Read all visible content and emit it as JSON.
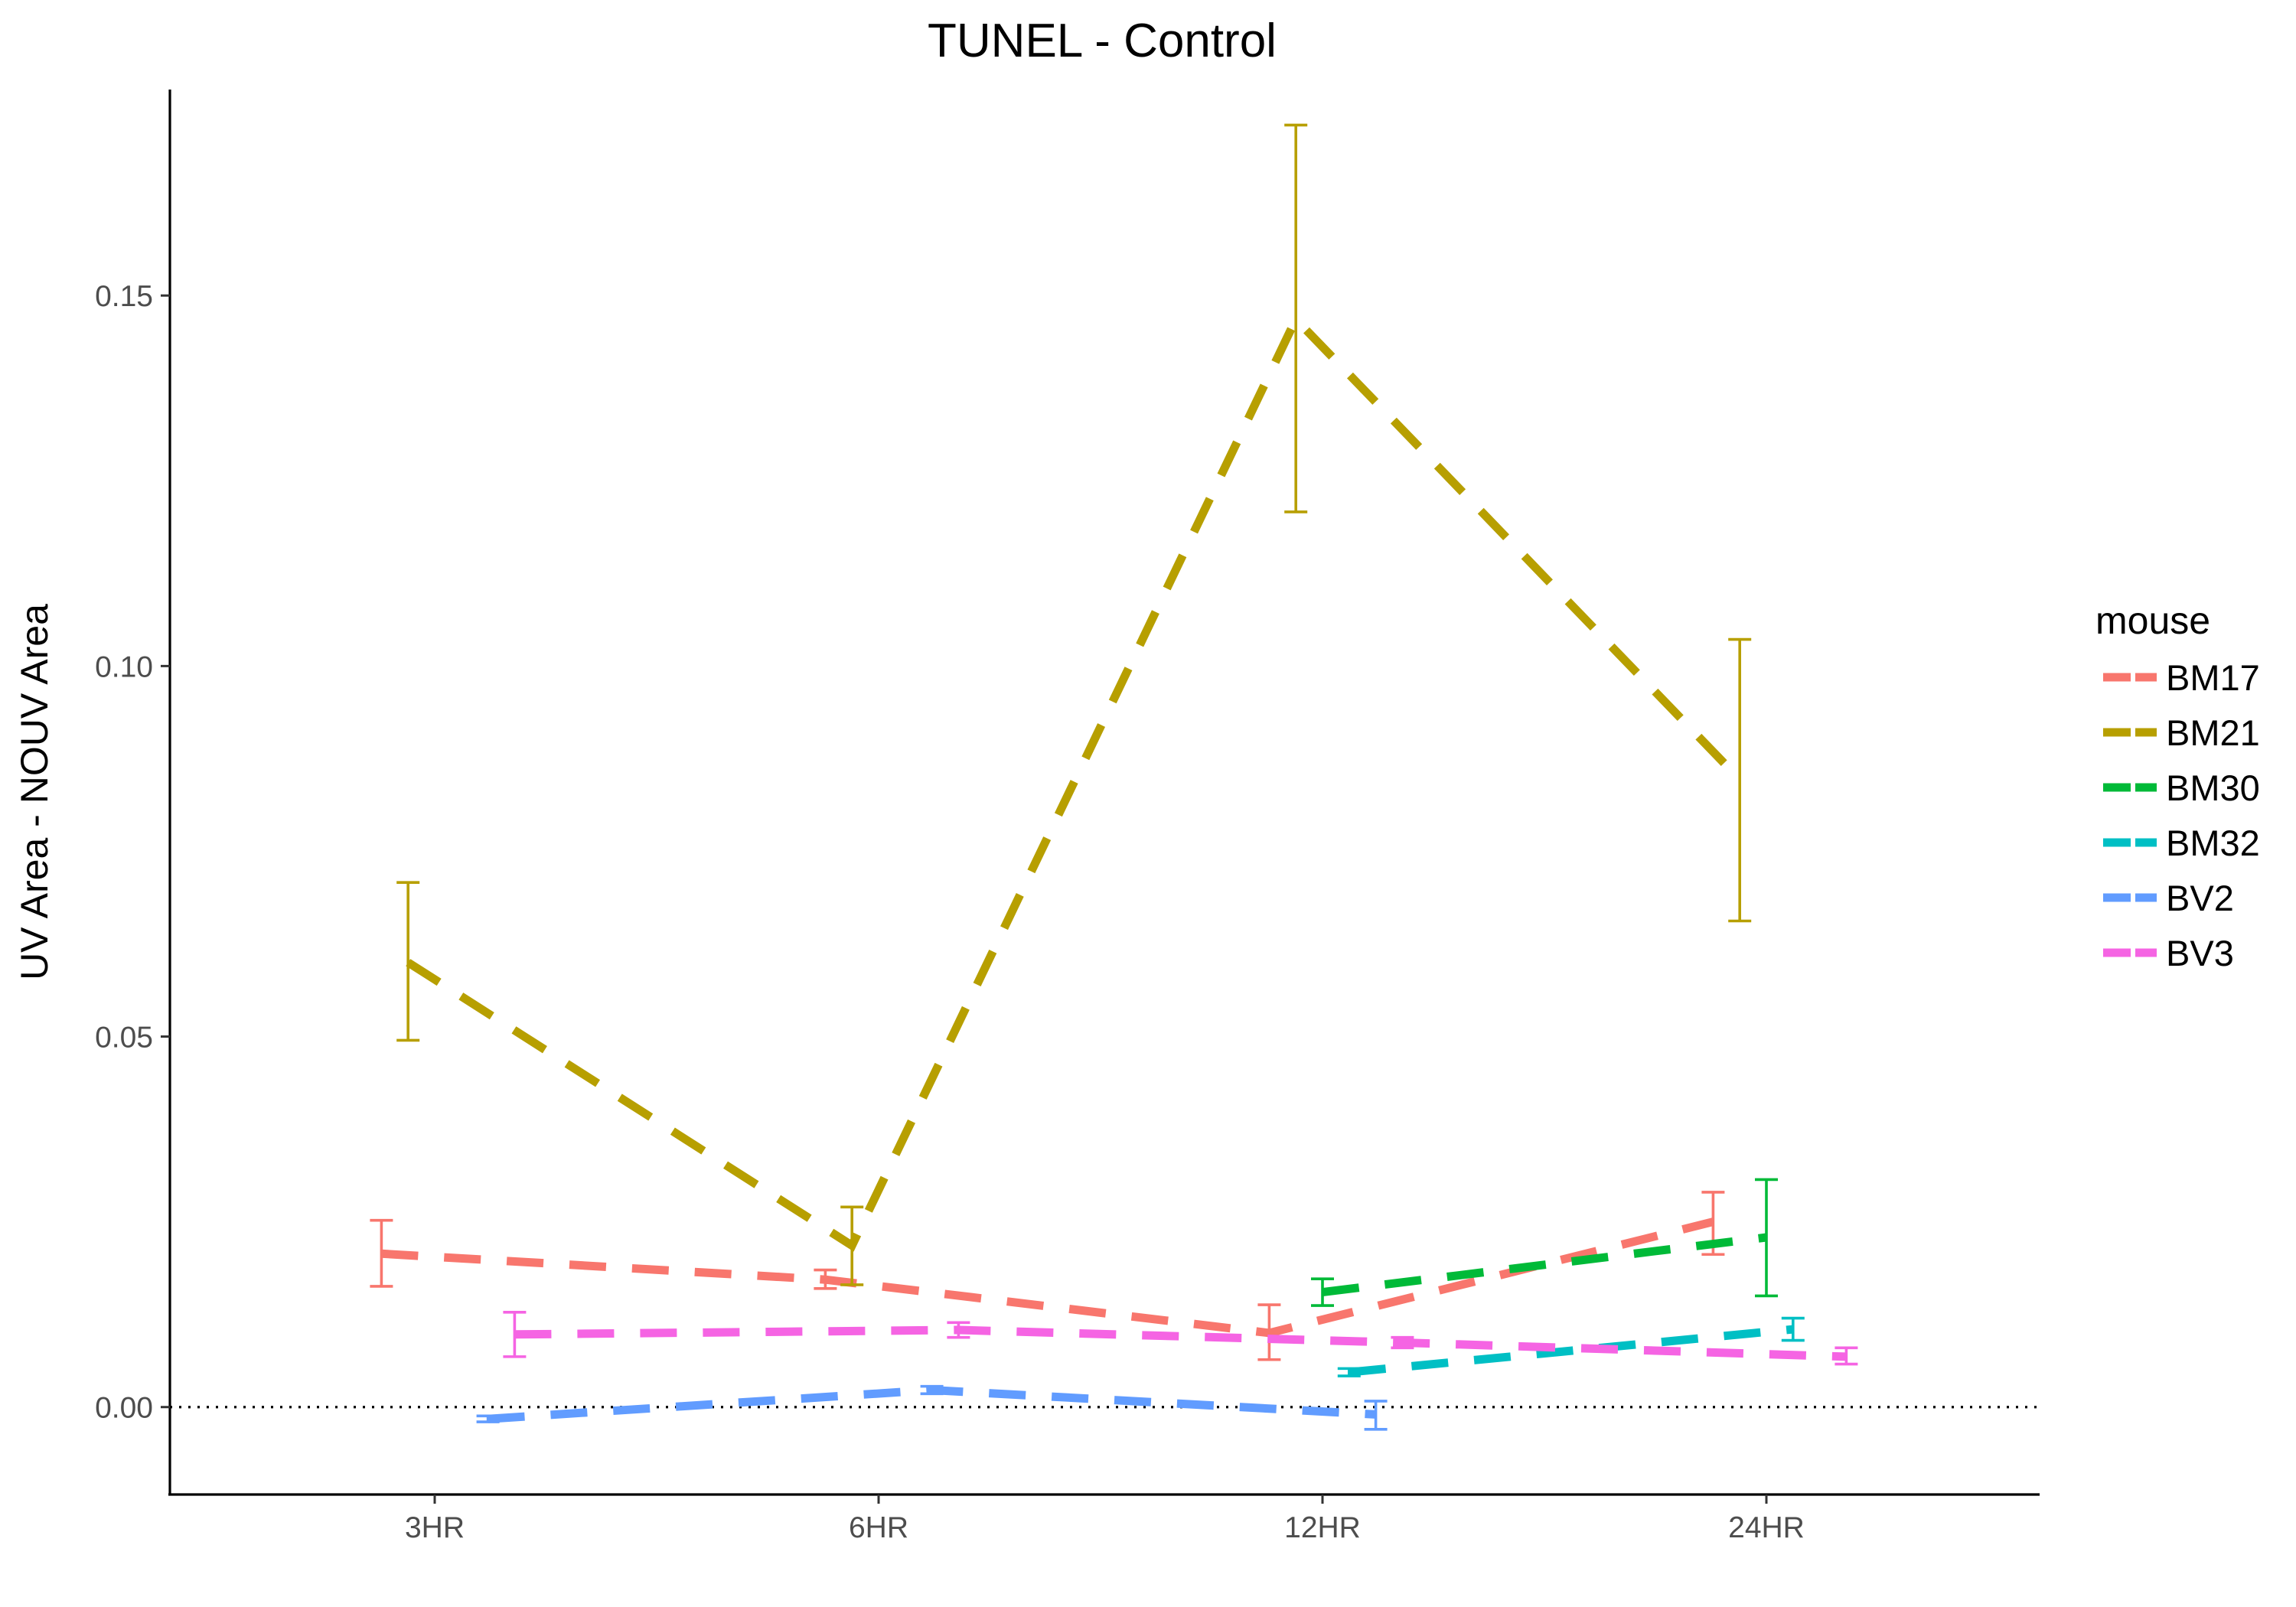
{
  "chart_data": {
    "type": "line",
    "title": "TUNEL - Control",
    "xlabel": "",
    "ylabel": "UV Area - NOUV Area",
    "categories": [
      "3HR",
      "6HR",
      "12HR",
      "24HR"
    ],
    "y_ticks": [
      {
        "value": 0.0,
        "label": "0.00"
      },
      {
        "value": 0.05,
        "label": "0.05"
      },
      {
        "value": 0.1,
        "label": "0.10"
      },
      {
        "value": 0.15,
        "label": "0.15"
      }
    ],
    "ylim": [
      -0.0118,
      0.1778
    ],
    "reference_line": {
      "y": 0,
      "style": "dotted"
    },
    "grid": false,
    "legend": {
      "title": "mouse",
      "position": "right"
    },
    "series": [
      {
        "name": "BM17",
        "color": "#F8766D",
        "dodge": -0.12,
        "points": [
          {
            "x": "3HR",
            "y": 0.0207,
            "lo": 0.0163,
            "hi": 0.0252
          },
          {
            "x": "6HR",
            "y": 0.0172,
            "lo": 0.016,
            "hi": 0.0185
          },
          {
            "x": "12HR",
            "y": 0.01,
            "lo": 0.0064,
            "hi": 0.0138
          },
          {
            "x": "24HR",
            "y": 0.025,
            "lo": 0.0206,
            "hi": 0.029
          }
        ]
      },
      {
        "name": "BM21",
        "color": "#B79F00",
        "dodge": -0.06,
        "points": [
          {
            "x": "3HR",
            "y": 0.06,
            "lo": 0.0495,
            "hi": 0.0708
          },
          {
            "x": "6HR",
            "y": 0.0218,
            "lo": 0.0165,
            "hi": 0.027
          },
          {
            "x": "12HR",
            "y": 0.1468,
            "lo": 0.1208,
            "hi": 0.173
          },
          {
            "x": "24HR",
            "y": 0.0847,
            "lo": 0.0656,
            "hi": 0.1036
          }
        ]
      },
      {
        "name": "BM30",
        "color": "#00BA38",
        "dodge": 0.0,
        "points": [
          {
            "x": "12HR",
            "y": 0.0155,
            "lo": 0.0137,
            "hi": 0.0173
          },
          {
            "x": "24HR",
            "y": 0.0229,
            "lo": 0.015,
            "hi": 0.0307
          }
        ]
      },
      {
        "name": "BM32",
        "color": "#00BFC4",
        "dodge": 0.06,
        "points": [
          {
            "x": "12HR",
            "y": 0.0047,
            "lo": 0.0042,
            "hi": 0.0052
          },
          {
            "x": "24HR",
            "y": 0.0105,
            "lo": 0.009,
            "hi": 0.012
          }
        ]
      },
      {
        "name": "BV2",
        "color": "#619CFF",
        "dodge": 0.12,
        "points": [
          {
            "x": "3HR",
            "y": -0.0016,
            "lo": -0.002,
            "hi": -0.0012
          },
          {
            "x": "6HR",
            "y": 0.0023,
            "lo": 0.0018,
            "hi": 0.0028
          },
          {
            "x": "12HR",
            "y": -0.001,
            "lo": -0.003,
            "hi": 0.0008
          }
        ]
      },
      {
        "name": "BV3",
        "color": "#F564E3",
        "dodge": 0.18,
        "points": [
          {
            "x": "3HR",
            "y": 0.0098,
            "lo": 0.0068,
            "hi": 0.0128
          },
          {
            "x": "6HR",
            "y": 0.0104,
            "lo": 0.0094,
            "hi": 0.0114
          },
          {
            "x": "12HR",
            "y": 0.0087,
            "lo": 0.008,
            "hi": 0.0094
          },
          {
            "x": "24HR",
            "y": 0.0068,
            "lo": 0.0058,
            "hi": 0.008
          }
        ]
      }
    ]
  }
}
